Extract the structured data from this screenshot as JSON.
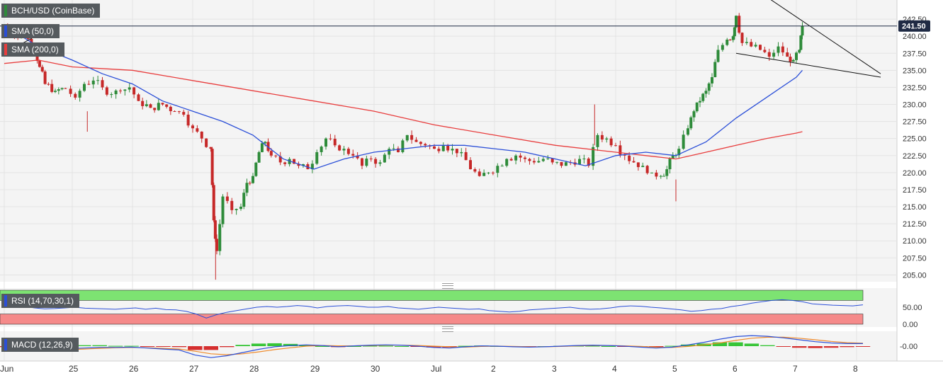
{
  "chart_data": [
    {
      "type": "candlestick",
      "title": "BCH/USD (CoinBase)",
      "ylim": [
        204,
        245
      ],
      "y_ticks": [
        "242.50",
        "240.00",
        "237.50",
        "235.00",
        "232.50",
        "230.00",
        "227.50",
        "225.00",
        "222.50",
        "220.00",
        "217.50",
        "215.00",
        "212.50",
        "210.00",
        "207.50",
        "205.00"
      ],
      "x_tick_labels": [
        "Jun",
        "25",
        "26",
        "27",
        "28",
        "29",
        "30",
        "Jul",
        "2",
        "3",
        "4",
        "5",
        "6",
        "7",
        "8"
      ],
      "last_price": "241.50",
      "price_path": [
        [
          0,
          241.5
        ],
        [
          0.15,
          240.0
        ],
        [
          0.3,
          240.3
        ],
        [
          0.45,
          238.0
        ],
        [
          0.52,
          235.5
        ],
        [
          0.6,
          233.0
        ],
        [
          0.75,
          232.0
        ],
        [
          0.9,
          232.3
        ],
        [
          1.05,
          231.0
        ],
        [
          1.2,
          233.0
        ],
        [
          1.35,
          233.5
        ],
        [
          1.5,
          232.5
        ],
        [
          1.65,
          231.5
        ],
        [
          1.8,
          232.0
        ],
        [
          1.95,
          232.5
        ],
        [
          2.1,
          230.5
        ],
        [
          2.3,
          229.5
        ],
        [
          2.5,
          230.0
        ],
        [
          2.7,
          229.0
        ],
        [
          2.85,
          228.5
        ],
        [
          3.0,
          226.5
        ],
        [
          3.15,
          225.0
        ],
        [
          3.3,
          223.5
        ],
        [
          3.35,
          213.0
        ],
        [
          3.4,
          208.5
        ],
        [
          3.5,
          216.5
        ],
        [
          3.65,
          214.5
        ],
        [
          3.8,
          215.0
        ],
        [
          3.9,
          218.5
        ],
        [
          4.0,
          219.5
        ],
        [
          4.1,
          223.0
        ],
        [
          4.2,
          224.5
        ],
        [
          4.3,
          222.5
        ],
        [
          4.45,
          221.5
        ],
        [
          4.6,
          222.0
        ],
        [
          4.75,
          221.0
        ],
        [
          4.9,
          220.5
        ],
        [
          5.05,
          223.0
        ],
        [
          5.2,
          225.0
        ],
        [
          5.35,
          224.0
        ],
        [
          5.5,
          223.5
        ],
        [
          5.65,
          222.5
        ],
        [
          5.8,
          221.0
        ],
        [
          5.95,
          222.0
        ],
        [
          6.1,
          221.5
        ],
        [
          6.25,
          223.5
        ],
        [
          6.4,
          223.0
        ],
        [
          6.55,
          225.5
        ],
        [
          6.7,
          224.5
        ],
        [
          6.85,
          224.0
        ],
        [
          7.0,
          223.5
        ],
        [
          7.15,
          224.0
        ],
        [
          7.3,
          223.5
        ],
        [
          7.45,
          223.0
        ],
        [
          7.6,
          220.5
        ],
        [
          7.75,
          219.5
        ],
        [
          7.9,
          220.0
        ],
        [
          8.05,
          221.0
        ],
        [
          8.2,
          222.0
        ],
        [
          8.35,
          222.5
        ],
        [
          8.5,
          222.0
        ],
        [
          8.65,
          221.5
        ],
        [
          8.8,
          222.0
        ],
        [
          8.95,
          221.5
        ],
        [
          9.1,
          221.0
        ],
        [
          9.25,
          221.5
        ],
        [
          9.4,
          222.0
        ],
        [
          9.55,
          221.0
        ],
        [
          9.7,
          225.5
        ],
        [
          9.85,
          225.0
        ],
        [
          10.0,
          224.0
        ],
        [
          10.15,
          222.5
        ],
        [
          10.3,
          221.5
        ],
        [
          10.45,
          221.0
        ],
        [
          10.6,
          220.0
        ],
        [
          10.75,
          219.5
        ],
        [
          10.85,
          220.5
        ],
        [
          10.95,
          222.5
        ],
        [
          11.05,
          223.5
        ],
        [
          11.2,
          226.5
        ],
        [
          11.3,
          229.0
        ],
        [
          11.4,
          230.5
        ],
        [
          11.5,
          232.0
        ],
        [
          11.6,
          234.0
        ],
        [
          11.7,
          238.0
        ],
        [
          11.85,
          239.5
        ],
        [
          11.95,
          240.0
        ],
        [
          12.0,
          243.0
        ],
        [
          12.1,
          239.0
        ],
        [
          12.25,
          238.5
        ],
        [
          12.4,
          238.0
        ],
        [
          12.55,
          237.0
        ],
        [
          12.7,
          238.5
        ],
        [
          12.85,
          237.0
        ],
        [
          12.95,
          236.5
        ],
        [
          13.05,
          238.0
        ],
        [
          13.1,
          241.5
        ]
      ],
      "sma50_points": [
        [
          -0.1,
          241.5
        ],
        [
          0.5,
          238.5
        ],
        [
          1.0,
          236.5
        ],
        [
          1.5,
          234.5
        ],
        [
          2.0,
          233.0
        ],
        [
          2.5,
          230.5
        ],
        [
          3.0,
          229.0
        ],
        [
          3.5,
          227.5
        ],
        [
          4.0,
          225.5
        ],
        [
          4.5,
          222.0
        ],
        [
          5.0,
          220.5
        ],
        [
          5.5,
          222.0
        ],
        [
          6.0,
          223.0
        ],
        [
          6.5,
          223.5
        ],
        [
          7.0,
          224.0
        ],
        [
          7.5,
          224.0
        ],
        [
          8.0,
          223.5
        ],
        [
          8.5,
          223.0
        ],
        [
          9.0,
          222.0
        ],
        [
          9.5,
          221.0
        ],
        [
          10.0,
          222.5
        ],
        [
          10.5,
          223.0
        ],
        [
          11.0,
          222.5
        ],
        [
          11.5,
          224.5
        ],
        [
          12.0,
          228.0
        ],
        [
          12.5,
          231.0
        ],
        [
          13.0,
          234.0
        ],
        [
          13.1,
          235.0
        ]
      ],
      "sma200_points": [
        [
          -0.1,
          236.0
        ],
        [
          0.5,
          236.5
        ],
        [
          1.0,
          235.5
        ],
        [
          2.0,
          235.0
        ],
        [
          3.0,
          233.5
        ],
        [
          4.0,
          232.0
        ],
        [
          5.0,
          230.5
        ],
        [
          6.0,
          229.0
        ],
        [
          7.0,
          227.0
        ],
        [
          8.0,
          225.5
        ],
        [
          9.0,
          224.0
        ],
        [
          10.0,
          223.0
        ],
        [
          10.5,
          222.5
        ],
        [
          11.0,
          222.0
        ],
        [
          11.5,
          223.0
        ],
        [
          12.0,
          224.0
        ],
        [
          12.5,
          225.0
        ],
        [
          13.0,
          225.8
        ],
        [
          13.1,
          226.0
        ]
      ],
      "trendline_upper": [
        [
          12.3,
          247.0
        ],
        [
          14.4,
          234.5
        ]
      ],
      "trendline_lower": [
        [
          12.0,
          237.5
        ],
        [
          14.4,
          234.0
        ]
      ],
      "legend": [
        {
          "label": "SMA (50,0)",
          "color": "#2b4fd8"
        },
        {
          "label": "SMA (200,0)",
          "color": "#e83d3d"
        }
      ],
      "colors": {
        "up": "#2e8b3a",
        "down": "#c62828",
        "sma50": "#2b4fd8",
        "sma200": "#e83d3d",
        "trend": "#111111",
        "last_line": "#1f2a44"
      }
    },
    {
      "type": "line",
      "name": "rsi",
      "title": "RSI (14,70,30,1)",
      "ylim": [
        0,
        100
      ],
      "y_ticks": [
        "50.00",
        "0.00"
      ],
      "overbought": 70,
      "oversold": 30,
      "values": [
        62,
        55,
        52,
        48,
        45,
        46,
        48,
        50,
        47,
        46,
        45,
        44,
        46,
        48,
        44,
        47,
        43,
        42,
        38,
        30,
        18,
        28,
        35,
        40,
        45,
        50,
        52,
        50,
        52,
        55,
        53,
        48,
        52,
        54,
        55,
        53,
        50,
        50,
        52,
        48,
        46,
        44,
        47,
        50,
        48,
        46,
        44,
        45,
        40,
        38,
        36,
        38,
        42,
        44,
        46,
        48,
        50,
        46,
        44,
        45,
        48,
        52,
        54,
        53,
        50,
        48,
        45,
        42,
        38,
        40,
        44,
        46,
        52,
        56,
        62,
        66,
        70,
        72,
        70,
        66,
        60,
        58,
        56,
        55,
        54,
        57
      ],
      "colors": {
        "line": "#2b4fd8",
        "ob_zone": "#7de372",
        "os_zone": "#f58a8a"
      }
    },
    {
      "type": "bar+line",
      "name": "macd",
      "title": "MACD (12,26,9)",
      "y_ticks": [
        "-0.00"
      ],
      "ylim": [
        -5,
        5
      ],
      "macd_line": [
        -0.8,
        -1.2,
        -1.5,
        -1.2,
        -0.8,
        -0.6,
        -0.4,
        -0.4,
        -0.3,
        -0.6,
        -0.9,
        -1.2,
        -2.8,
        -3.6,
        -3.0,
        -2.0,
        -1.0,
        -0.2,
        0.2,
        0.4,
        0.2,
        -0.2,
        0.1,
        0.3,
        0.4,
        0.3,
        0.0,
        -0.4,
        -0.6,
        -0.2,
        0.1,
        0.0,
        -0.2,
        -0.3,
        -0.2,
        0.0,
        0.2,
        0.3,
        0.2,
        0.0,
        -0.3,
        -0.6,
        -0.3,
        0.4,
        1.2,
        2.2,
        3.0,
        3.3,
        3.1,
        2.6,
        2.0,
        1.4,
        1.0,
        0.8,
        0.8
      ],
      "signal_line": [
        -0.5,
        -0.9,
        -1.2,
        -1.3,
        -1.1,
        -0.9,
        -0.7,
        -0.5,
        -0.4,
        -0.5,
        -0.7,
        -0.9,
        -1.6,
        -2.4,
        -2.7,
        -2.4,
        -1.8,
        -1.1,
        -0.5,
        0.0,
        0.2,
        0.1,
        0.1,
        0.2,
        0.3,
        0.3,
        0.2,
        0.0,
        -0.2,
        -0.3,
        -0.1,
        0.0,
        -0.1,
        -0.2,
        -0.2,
        -0.1,
        0.1,
        0.2,
        0.2,
        0.1,
        -0.1,
        -0.3,
        -0.4,
        -0.1,
        0.4,
        1.0,
        1.8,
        2.5,
        2.8,
        2.8,
        2.5,
        2.0,
        1.5,
        1.1,
        0.9
      ],
      "histogram": [
        -0.3,
        -0.3,
        -0.3,
        0.1,
        0.3,
        0.3,
        0.3,
        0.1,
        0.1,
        -0.1,
        -0.2,
        -0.3,
        -1.2,
        -1.2,
        -0.3,
        0.4,
        0.8,
        0.9,
        0.7,
        0.4,
        0.0,
        -0.3,
        0.0,
        0.1,
        0.1,
        0.0,
        -0.2,
        -0.4,
        -0.4,
        0.1,
        0.2,
        0.0,
        -0.1,
        -0.1,
        0.0,
        0.1,
        0.1,
        0.1,
        0.0,
        -0.1,
        -0.2,
        -0.3,
        0.1,
        0.5,
        0.8,
        1.2,
        1.2,
        0.8,
        0.3,
        -0.2,
        -0.5,
        -0.6,
        -0.5,
        -0.3,
        -0.1
      ],
      "colors": {
        "macd": "#2b4fd8",
        "signal": "#ef8a2a",
        "hist_up": "#22c022",
        "hist_down": "#d21818"
      }
    }
  ]
}
